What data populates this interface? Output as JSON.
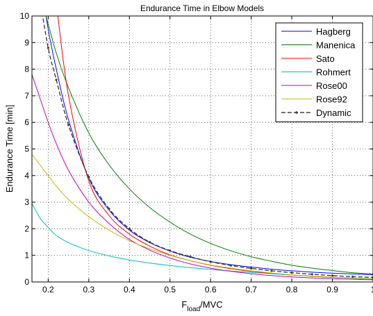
{
  "chart_data": {
    "type": "line",
    "title": "Endurance Time in Elbow Models",
    "xlabel_main": "F",
    "xlabel_sub": "load",
    "xlabel_tail": "/MVC",
    "ylabel": "Endurance Time [min]",
    "xlim": [
      0.16,
      1.0
    ],
    "ylim": [
      0,
      10
    ],
    "xticks": [
      0.2,
      0.3,
      0.4,
      0.5,
      0.6,
      0.7,
      0.8,
      0.9,
      1
    ],
    "xtick_labels": [
      "0.2",
      "0.3",
      "0.4",
      "0.5",
      "0.6",
      "0.7",
      "0.8",
      "0.9",
      "1"
    ],
    "yticks": [
      0,
      1,
      2,
      3,
      4,
      5,
      6,
      7,
      8,
      9,
      10
    ],
    "ytick_labels": [
      "0",
      "1",
      "2",
      "3",
      "4",
      "5",
      "6",
      "7",
      "8",
      "9",
      "10"
    ],
    "grid": true,
    "legend_position": "top-right",
    "x": [
      0.16,
      0.18,
      0.2,
      0.22,
      0.25,
      0.3,
      0.35,
      0.4,
      0.45,
      0.5,
      0.55,
      0.6,
      0.65,
      0.7,
      0.75,
      0.8,
      0.85,
      0.9,
      0.95,
      1.0
    ],
    "series": [
      {
        "name": "Hagberg",
        "color": "#0000ff",
        "dashed": false,
        "values": [
          null,
          11.5,
          9.5,
          8.0,
          6.1,
          3.9,
          2.7,
          1.95,
          1.48,
          1.16,
          0.93,
          0.77,
          0.65,
          0.56,
          0.48,
          0.42,
          0.37,
          0.33,
          0.3,
          0.27
        ]
      },
      {
        "name": "Manenica",
        "color": "#008000",
        "dashed": false,
        "values": [
          null,
          10.8,
          9.7,
          8.6,
          7.3,
          5.6,
          4.4,
          3.5,
          2.8,
          2.25,
          1.8,
          1.45,
          1.17,
          0.95,
          0.78,
          0.63,
          0.52,
          0.43,
          0.35,
          0.3
        ]
      },
      {
        "name": "Sato",
        "color": "#ff0000",
        "dashed": false,
        "values": [
          null,
          null,
          null,
          10.5,
          7.0,
          3.8,
          2.5,
          1.8,
          1.35,
          1.02,
          0.8,
          0.63,
          0.5,
          0.4,
          0.32,
          0.26,
          0.21,
          0.17,
          0.14,
          0.11
        ]
      },
      {
        "name": "Rohmert",
        "color": "#00bfbf",
        "dashed": false,
        "values": [
          2.95,
          2.4,
          2.05,
          1.75,
          1.48,
          1.18,
          0.98,
          0.83,
          0.71,
          0.62,
          0.54,
          0.47,
          0.41,
          0.36,
          0.31,
          0.26,
          0.22,
          0.18,
          0.14,
          0.1
        ]
      },
      {
        "name": "Rose00",
        "color": "#bf00bf",
        "dashed": false,
        "values": [
          7.8,
          6.9,
          6.0,
          5.2,
          4.2,
          3.0,
          2.2,
          1.6,
          1.2,
          0.9,
          0.68,
          0.52,
          0.4,
          0.31,
          0.24,
          0.19,
          0.15,
          0.12,
          0.1,
          0.08
        ]
      },
      {
        "name": "Rose92",
        "color": "#bfbf00",
        "dashed": false,
        "values": [
          4.8,
          4.4,
          4.0,
          3.6,
          3.1,
          2.45,
          1.95,
          1.55,
          1.25,
          1.0,
          0.8,
          0.64,
          0.52,
          0.42,
          0.34,
          0.27,
          0.22,
          0.18,
          0.15,
          0.12
        ]
      },
      {
        "name": "Dynamic",
        "color": "#404040",
        "dashed": true,
        "values": [
          null,
          10.6,
          8.8,
          7.6,
          5.9,
          3.95,
          2.75,
          2.0,
          1.5,
          1.18,
          0.95,
          0.76,
          0.62,
          0.51,
          0.42,
          0.35,
          0.29,
          0.24,
          0.2,
          0.17
        ]
      }
    ]
  }
}
